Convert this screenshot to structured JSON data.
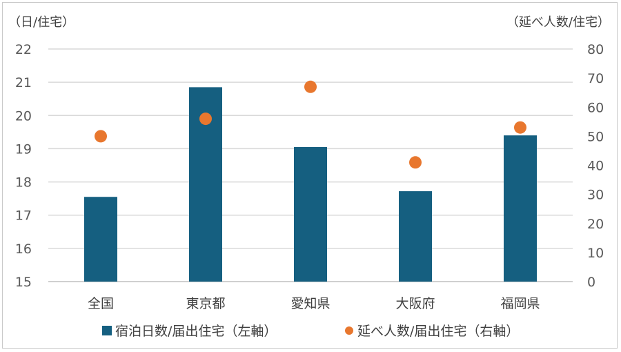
{
  "chart_data": {
    "type": "bar",
    "categories": [
      "全国",
      "東京都",
      "愛知県",
      "大阪府",
      "福岡県"
    ],
    "series": [
      {
        "name": "宿泊日数/届出住宅（左軸）",
        "type": "bar",
        "axis": "left",
        "color": "#155f80",
        "values": [
          17.55,
          20.85,
          19.05,
          17.72,
          19.4
        ]
      },
      {
        "name": "延べ人数/届出住宅（右軸）",
        "type": "scatter",
        "axis": "right",
        "color": "#e8772e",
        "values": [
          50.0,
          56.0,
          67.0,
          41.0,
          53.0
        ]
      }
    ],
    "left_axis": {
      "unit": "（日/住宅）",
      "ylim": [
        15,
        22
      ],
      "ticks": [
        15,
        16,
        17,
        18,
        19,
        20,
        21,
        22
      ]
    },
    "right_axis": {
      "unit": "（延べ人数/住宅）",
      "ylim": [
        0,
        80
      ],
      "ticks": [
        0,
        10,
        20,
        30,
        40,
        50,
        60,
        70,
        80
      ]
    },
    "grid": true,
    "legend_position": "bottom"
  }
}
